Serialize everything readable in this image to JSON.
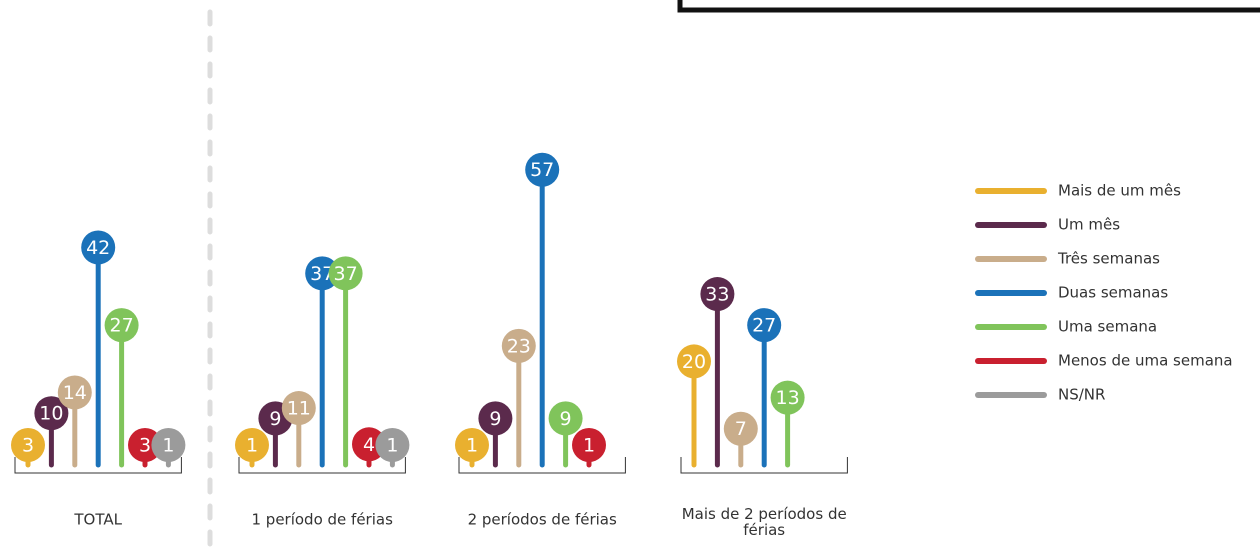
{
  "chart_data": {
    "type": "lollipop",
    "categories": [
      "TOTAL",
      "1 período de férias",
      "2 períodos de férias",
      "Mais de 2 períodos de férias"
    ],
    "series": [
      {
        "name": "Mais de um mês",
        "color": "#e9b02f",
        "values": [
          3,
          1,
          1,
          20
        ]
      },
      {
        "name": "Um mês",
        "color": "#5b2a4c",
        "values": [
          10,
          9,
          9,
          33
        ]
      },
      {
        "name": "Três semanas",
        "color": "#c9ad8b",
        "values": [
          14,
          11,
          23,
          7
        ]
      },
      {
        "name": "Duas semanas",
        "color": "#1b72b9",
        "values": [
          42,
          37,
          57,
          27
        ]
      },
      {
        "name": "Uma semana",
        "color": "#80c45b",
        "values": [
          27,
          37,
          9,
          13
        ]
      },
      {
        "name": "Menos de uma semana",
        "color": "#c9202f",
        "values": [
          3,
          4,
          1,
          null
        ]
      },
      {
        "name": "NS/NR",
        "color": "#9b9b9b",
        "values": [
          1,
          1,
          null,
          null
        ]
      }
    ],
    "legend": "right"
  }
}
